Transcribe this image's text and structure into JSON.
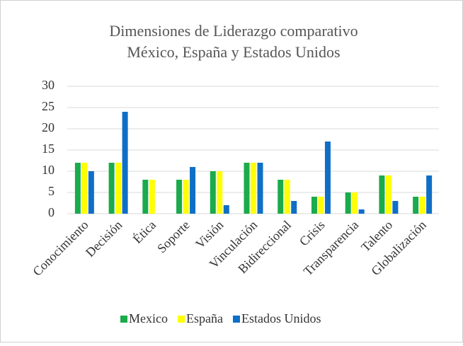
{
  "chart_data": {
    "type": "bar",
    "title": [
      "Dimensiones de Liderazgo comparativo",
      "México, España y Estados Unidos"
    ],
    "categories": [
      "Conocimiento",
      "Decisión",
      "Ética",
      "Soporte",
      "Visión",
      "Vinculación",
      "Bidireccional",
      "Crisis",
      "Transparencia",
      "Talento",
      "Globalización"
    ],
    "series": [
      {
        "name": "Mexico",
        "color": "#1aab4b",
        "values": [
          12,
          12,
          8,
          8,
          10,
          12,
          8,
          4,
          5,
          9,
          4
        ]
      },
      {
        "name": "España",
        "color": "#ffff00",
        "values": [
          12,
          12,
          8,
          8,
          10,
          12,
          8,
          4,
          5,
          9,
          4
        ]
      },
      {
        "name": "Estados Unidos",
        "color": "#0f6fc6",
        "values": [
          10,
          24,
          0,
          11,
          2,
          12,
          3,
          17,
          1,
          3,
          9
        ]
      }
    ],
    "ylim": [
      0,
      30
    ],
    "yticks": [
      0,
      5,
      10,
      15,
      20,
      25,
      30
    ],
    "grid": true,
    "legend": "bottom"
  }
}
